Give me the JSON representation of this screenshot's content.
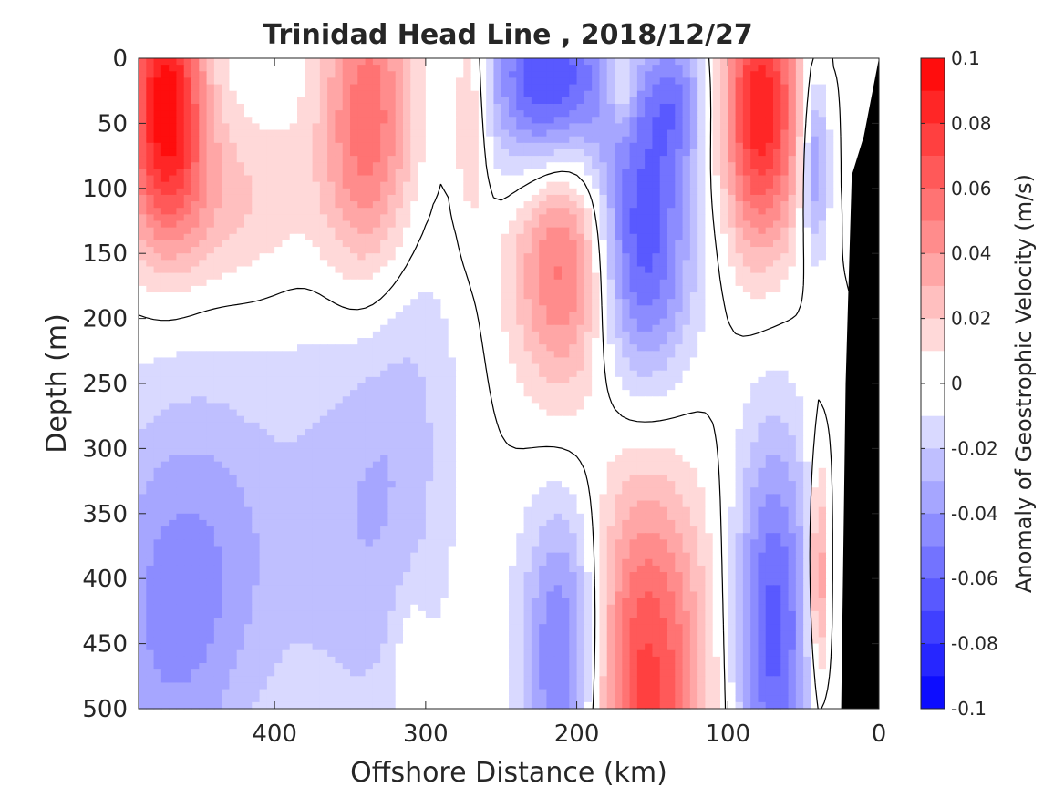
{
  "chart_data": {
    "type": "heatmap",
    "title": "Trinidad Head Line , 2018/12/27",
    "xlabel": "Offshore Distance (km)",
    "ylabel": "Depth (m)",
    "colorbar_label": "Anomaly of Geostrophic Velocity (m/s)",
    "xlim": [
      490,
      0
    ],
    "ylim": [
      0,
      500
    ],
    "y_reversed": true,
    "x_reversed": true,
    "x_ticks": [
      "400",
      "300",
      "200",
      "100",
      "0"
    ],
    "x_tick_values": [
      400,
      300,
      200,
      100,
      0
    ],
    "y_ticks": [
      "0",
      "50",
      "100",
      "150",
      "200",
      "250",
      "300",
      "350",
      "400",
      "450",
      "500"
    ],
    "y_tick_values": [
      0,
      50,
      100,
      150,
      200,
      250,
      300,
      350,
      400,
      450,
      500
    ],
    "clim": [
      -0.1,
      0.1
    ],
    "colorbar_ticks": [
      "0.1",
      "0.08",
      "0.06",
      "0.04",
      "0.02",
      "0",
      "-0.02",
      "-0.04",
      "-0.06",
      "-0.08",
      "-0.1"
    ],
    "colorbar_tick_values": [
      0.1,
      0.08,
      0.06,
      0.04,
      0.02,
      0,
      -0.02,
      -0.04,
      -0.06,
      -0.08,
      -0.1
    ],
    "colormap": {
      "negative": "#0000ff",
      "zero": "#ffffff",
      "positive": "#ff0000",
      "levels": 20
    },
    "zero_contour": true,
    "bathymetry_color": "#000000",
    "bathymetry": [
      [
        0,
        0
      ],
      [
        10,
        60
      ],
      [
        18,
        90
      ],
      [
        22,
        250
      ],
      [
        25,
        500
      ]
    ],
    "features": [
      {
        "label": "positive core",
        "x": 472,
        "y": 30,
        "sx": 18,
        "sy": 70,
        "amp": 0.095
      },
      {
        "label": "positive lobe",
        "x": 440,
        "y": 110,
        "sx": 45,
        "sy": 50,
        "amp": 0.025
      },
      {
        "label": "positive core",
        "x": 338,
        "y": 50,
        "sx": 22,
        "sy": 90,
        "amp": 0.06
      },
      {
        "label": "positive core",
        "x": 270,
        "y": 40,
        "sx": 8,
        "sy": 60,
        "amp": 0.03
      },
      {
        "label": "negative core",
        "x": 218,
        "y": 20,
        "sx": 28,
        "sy": 55,
        "amp": -0.08
      },
      {
        "label": "positive core",
        "x": 205,
        "y": 150,
        "sx": 25,
        "sy": 75,
        "amp": 0.065
      },
      {
        "label": "negative core",
        "x": 160,
        "y": 140,
        "sx": 25,
        "sy": 80,
        "amp": -0.075
      },
      {
        "label": "negative core",
        "x": 135,
        "y": 30,
        "sx": 15,
        "sy": 40,
        "amp": -0.04
      },
      {
        "label": "positive core",
        "x": 170,
        "y": 20,
        "sx": 6,
        "sy": 25,
        "amp": 0.03
      },
      {
        "label": "positive core",
        "x": 78,
        "y": 40,
        "sx": 18,
        "sy": 75,
        "amp": 0.09
      },
      {
        "label": "negative core",
        "x": 42,
        "y": 80,
        "sx": 6,
        "sy": 50,
        "amp": -0.05
      },
      {
        "label": "positive core",
        "x": 155,
        "y": 480,
        "sx": 28,
        "sy": 110,
        "amp": 0.075
      },
      {
        "label": "negative core",
        "x": 208,
        "y": 460,
        "sx": 20,
        "sy": 85,
        "amp": -0.06
      },
      {
        "label": "negative core",
        "x": 70,
        "y": 440,
        "sx": 18,
        "sy": 110,
        "amp": -0.065
      },
      {
        "label": "negative lobe",
        "x": 470,
        "y": 430,
        "sx": 40,
        "sy": 120,
        "amp": -0.04
      },
      {
        "label": "negative lobe",
        "x": 420,
        "y": 360,
        "sx": 40,
        "sy": 100,
        "amp": -0.015
      },
      {
        "label": "negative lobe",
        "x": 340,
        "y": 360,
        "sx": 35,
        "sy": 140,
        "amp": -0.025
      },
      {
        "label": "negative lobe",
        "x": 310,
        "y": 250,
        "sx": 25,
        "sy": 110,
        "amp": -0.012
      },
      {
        "label": "positive core",
        "x": 40,
        "y": 400,
        "sx": 4,
        "sy": 60,
        "amp": 0.06
      },
      {
        "label": "positive lobe",
        "x": 310,
        "y": 460,
        "sx": 8,
        "sy": 40,
        "amp": 0.015
      }
    ]
  }
}
